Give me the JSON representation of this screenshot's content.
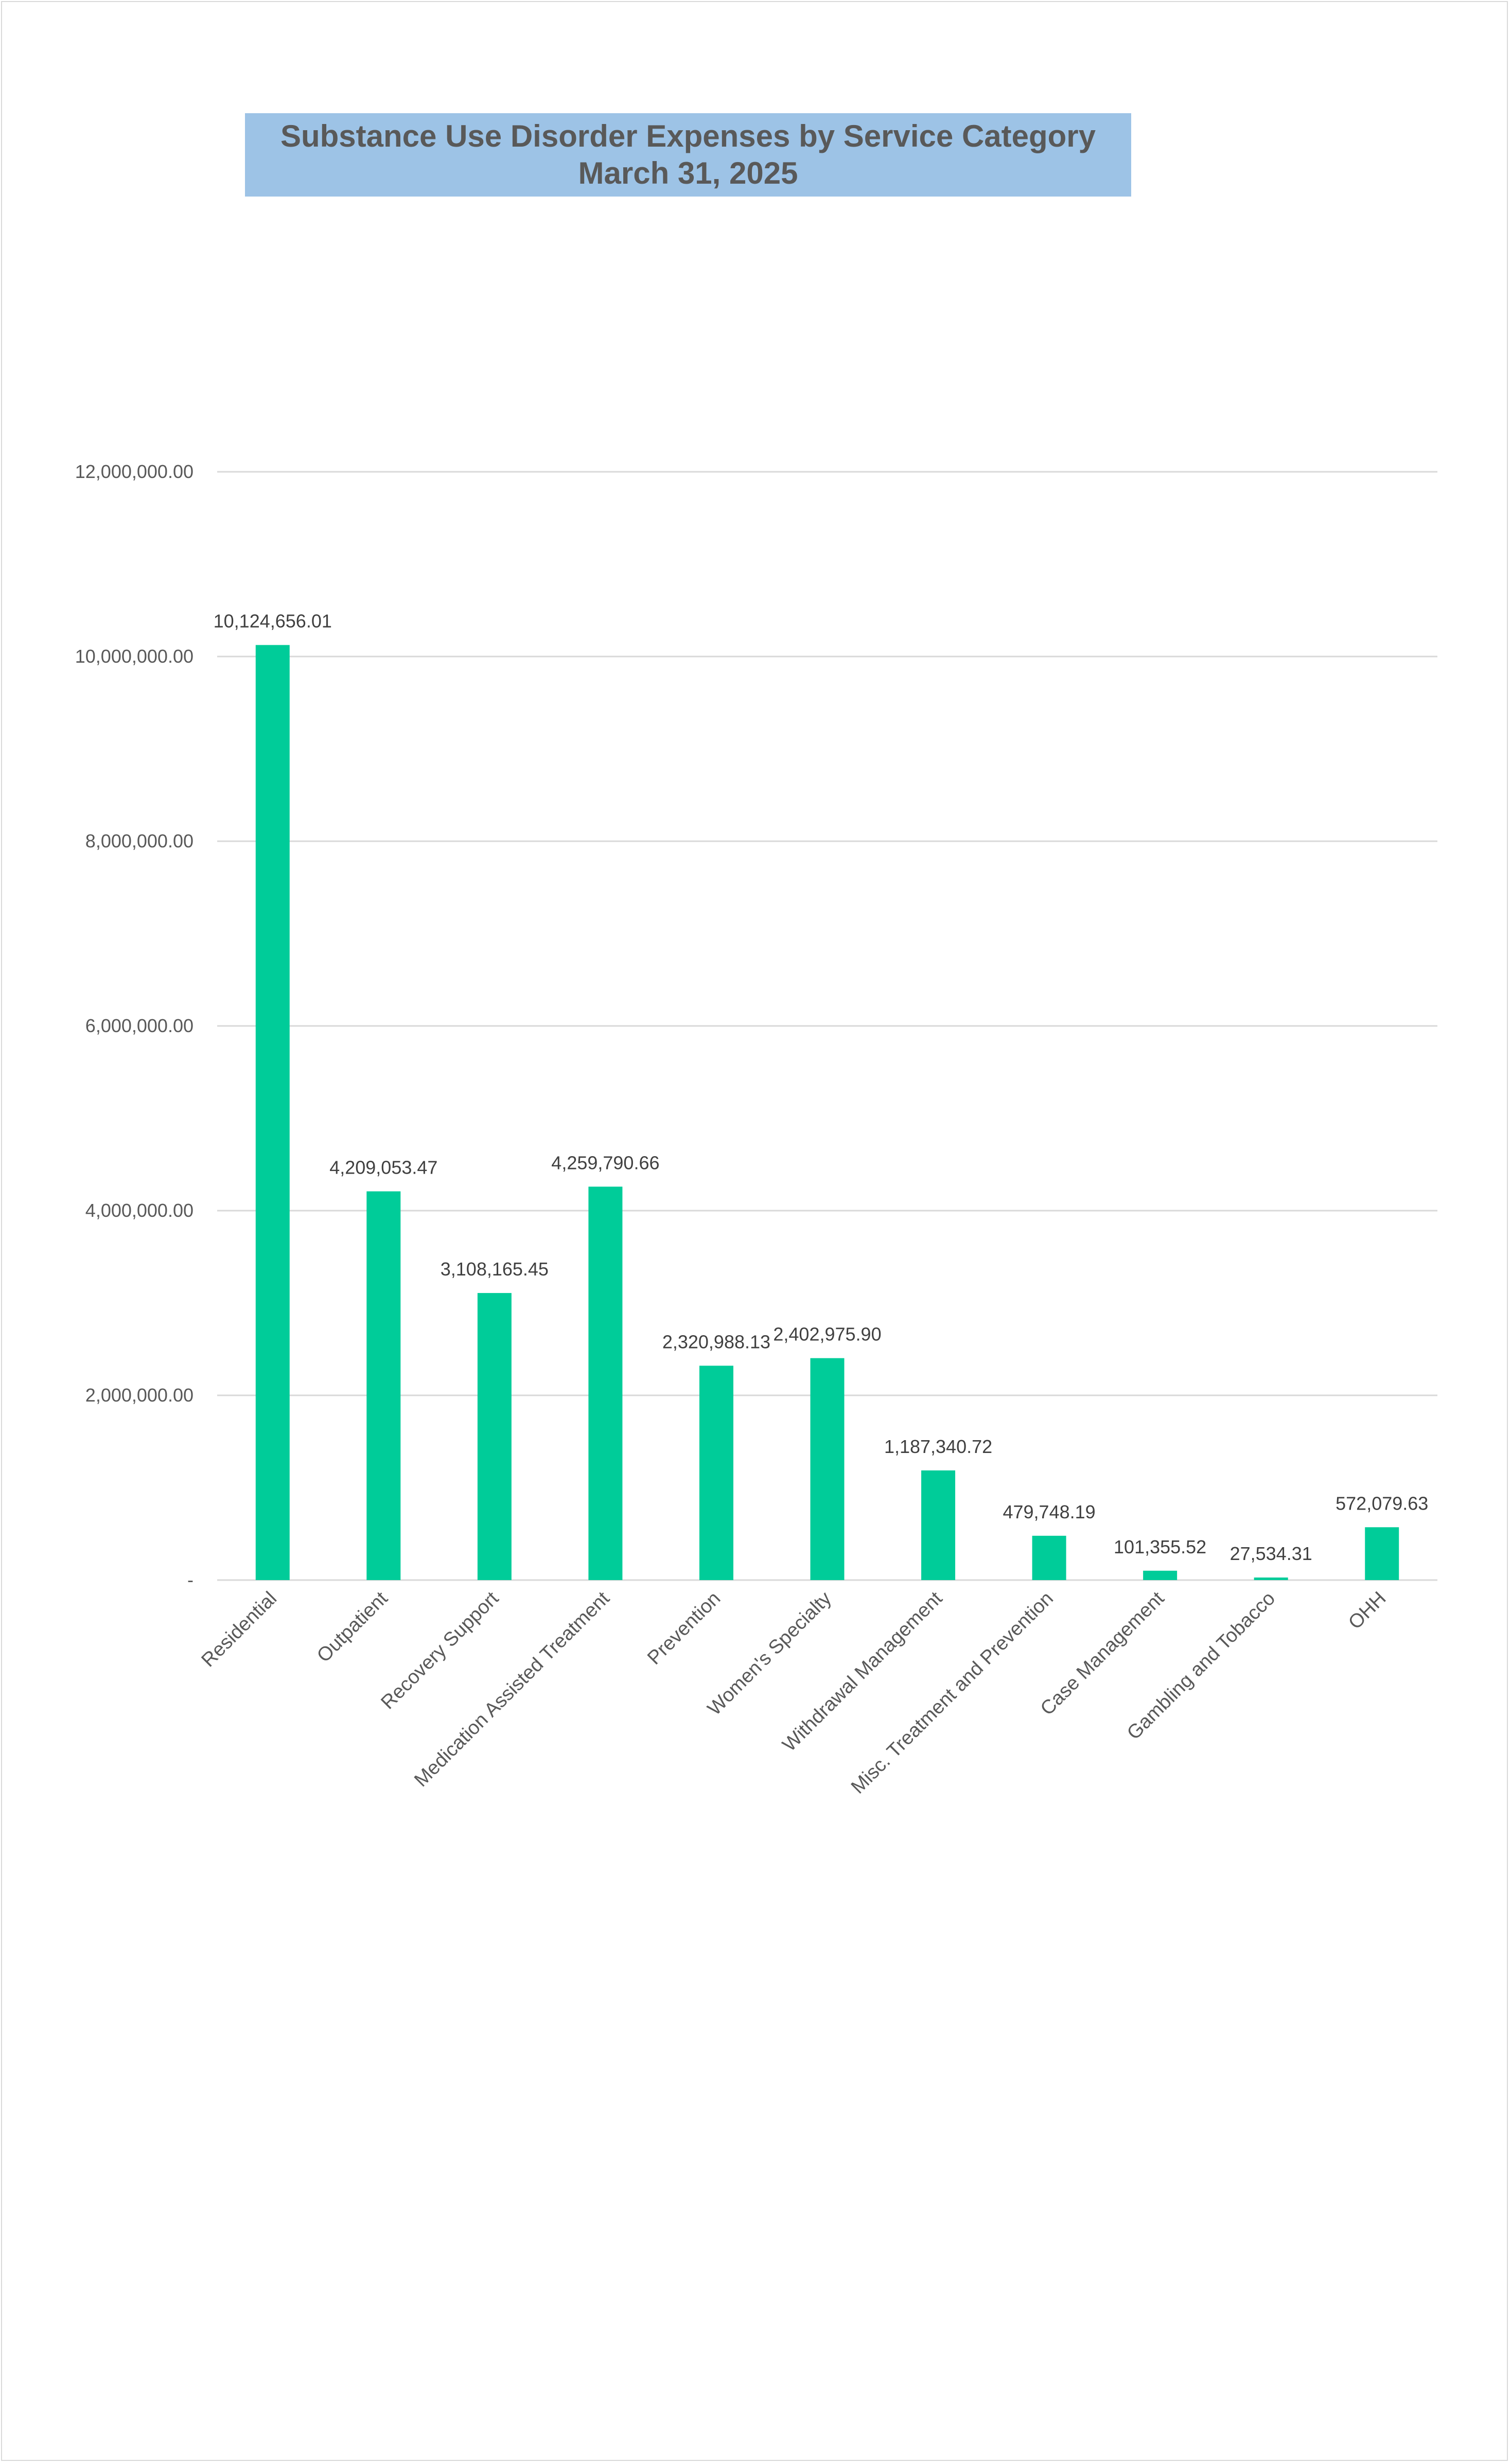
{
  "chart_data": {
    "type": "bar",
    "title": "Substance Use Disorder Expenses by Service Category",
    "subtitle": "March 31, 2025",
    "xlabel": "",
    "ylabel": "",
    "ylim": [
      0,
      12000000
    ],
    "yticks": [
      {
        "value": 0,
        "label": "-"
      },
      {
        "value": 2000000,
        "label": "2,000,000.00"
      },
      {
        "value": 4000000,
        "label": "4,000,000.00"
      },
      {
        "value": 6000000,
        "label": "6,000,000.00"
      },
      {
        "value": 8000000,
        "label": "8,000,000.00"
      },
      {
        "value": 10000000,
        "label": "10,000,000.00"
      },
      {
        "value": 12000000,
        "label": "12,000,000.00"
      }
    ],
    "grid": true,
    "legend": "none",
    "bar_color": "#00cc99",
    "categories": [
      "Residential",
      "Outpatient",
      "Recovery Support",
      "Medication Assisted Treatment",
      "Prevention",
      "Women's Specialty",
      "Withdrawal Management",
      "Misc. Treatment and Prevention",
      "Case Management",
      "Gambling and Tobacco",
      "OHH"
    ],
    "values": [
      10124656.01,
      4209053.47,
      3108165.45,
      4259790.66,
      2320988.13,
      2402975.9,
      1187340.72,
      479748.19,
      101355.52,
      27534.31,
      572079.63
    ],
    "value_labels": [
      "10,124,656.01",
      "4,209,053.47",
      "3,108,165.45",
      "4,259,790.66",
      "2,320,988.13",
      "2,402,975.90",
      "1,187,340.72",
      "479,748.19",
      "101,355.52",
      "27,534.31",
      "572,079.63"
    ]
  }
}
